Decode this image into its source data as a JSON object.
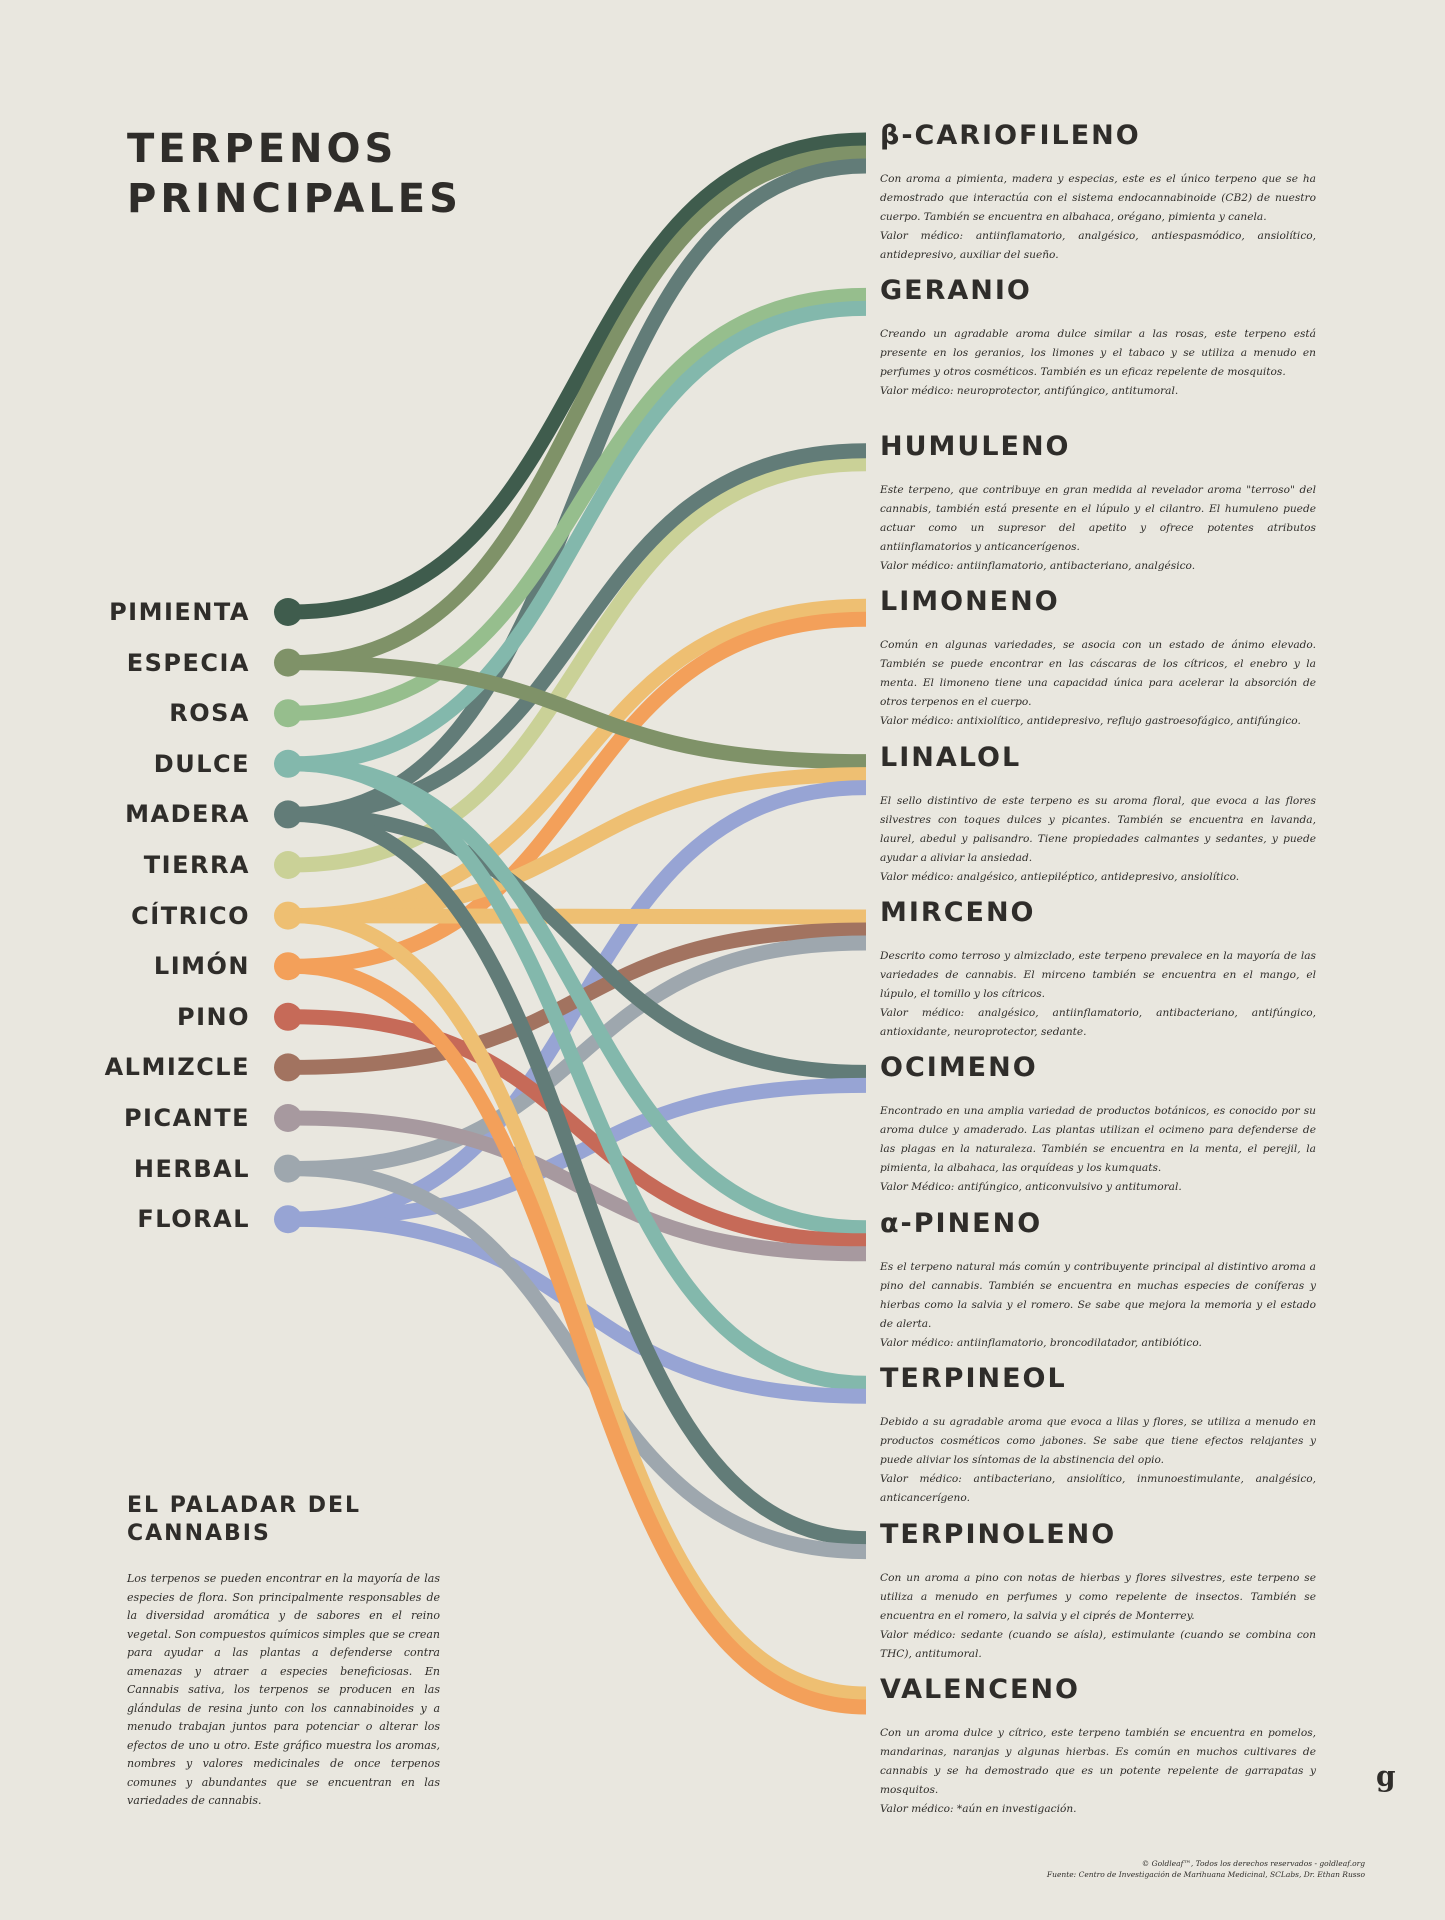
{
  "title": {
    "line1": "TERPENOS",
    "line2": "PRINCIPALES"
  },
  "aromas": [
    {
      "id": "pimienta",
      "label": "PIMIENTA",
      "color": "#3f5c4d"
    },
    {
      "id": "especia",
      "label": "ESPECIA",
      "color": "#7f9268"
    },
    {
      "id": "rosa",
      "label": "ROSA",
      "color": "#96be8d"
    },
    {
      "id": "dulce",
      "label": "DULCE",
      "color": "#83b8ac"
    },
    {
      "id": "madera",
      "label": "MADERA",
      "color": "#627c78"
    },
    {
      "id": "tierra",
      "label": "TIERRA",
      "color": "#cad197"
    },
    {
      "id": "citrico",
      "label": "CÍTRICO",
      "color": "#eebf72"
    },
    {
      "id": "limon",
      "label": "LIMÓN",
      "color": "#f3a05a"
    },
    {
      "id": "pino",
      "label": "PINO",
      "color": "#c66a58"
    },
    {
      "id": "almizcle",
      "label": "ALMIZCLE",
      "color": "#a27360"
    },
    {
      "id": "picante",
      "label": "PICANTE",
      "color": "#a7999f"
    },
    {
      "id": "herbal",
      "label": "HERBAL",
      "color": "#9ea7ae"
    },
    {
      "id": "floral",
      "label": "FLORAL",
      "color": "#97a4d4"
    }
  ],
  "terpenes": [
    {
      "id": "cariofileno",
      "name": "β-CARIOFILENO",
      "description": [
        "Con aroma a pimienta, madera y especias, este es el único terpeno que se ha demostrado que interactúa con el sistema endocannabinoide (CB2) de nuestro cuerpo. También se encuentra en albahaca, orégano, pimienta y canela.",
        "Valor médico: antiinflamatorio, analgésico, antiespasmódico, ansiolítico, antidepresivo, auxiliar del sueño."
      ]
    },
    {
      "id": "geranio",
      "name": "GERANIO",
      "description": [
        "Creando un agradable aroma dulce similar a las rosas, este terpeno está presente en los geranios, los limones y el tabaco y se utiliza a menudo en perfumes y otros cosméticos. También es un eficaz repelente de mosquitos.",
        "Valor médico: neuroprotector, antifúngico, antitumoral."
      ]
    },
    {
      "id": "humuleno",
      "name": "HUMULENO",
      "description": [
        "Este terpeno, que contribuye en gran medida al revelador aroma \"terroso\" del cannabis, también está presente en el lúpulo y el cilantro. El humuleno puede actuar como un supresor del apetito y ofrece potentes atributos antiinflamatorios y anticancerígenos.",
        "Valor médico: antiinflamatorio, antibacteriano, analgésico."
      ]
    },
    {
      "id": "limoneno",
      "name": "LIMONENO",
      "description": [
        "Común en algunas variedades, se asocia con un estado de ánimo elevado. También se puede encontrar en las cáscaras de los cítricos, el enebro y la menta. El limoneno tiene una capacidad única para acelerar la absorción de otros terpenos en el cuerpo.",
        "Valor médico: antixiolítico, antidepresivo, reflujo gastroesofágico, antifúngico."
      ]
    },
    {
      "id": "linalol",
      "name": "LINALOL",
      "description": [
        "El sello distintivo de este terpeno es su aroma floral, que evoca a las flores silvestres con toques dulces y picantes. También se encuentra en lavanda, laurel, abedul y palisandro. Tiene propiedades calmantes y sedantes, y puede ayudar a aliviar la ansiedad.",
        "Valor médico: analgésico, antiepiléptico, antidepresivo, ansiolítico."
      ]
    },
    {
      "id": "mirceno",
      "name": "MIRCENO",
      "description": [
        "Descrito como terroso y almizclado, este terpeno prevalece en la mayoría de las variedades de cannabis. El mirceno también se encuentra en el mango, el lúpulo, el tomillo y los cítricos.",
        "Valor médico: analgésico, antiinflamatorio, antibacteriano, antifúngico, antioxidante, neuroprotector, sedante."
      ]
    },
    {
      "id": "ocimeno",
      "name": "OCIMENO",
      "description": [
        "Encontrado en una amplia variedad de productos botánicos, es conocido por su aroma dulce y amaderado. Las plantas utilizan el ocimeno para defenderse de las plagas en la naturaleza. También se encuentra en la menta, el perejil, la pimienta, la albahaca, las orquídeas y los kumquats.",
        "Valor Médico: antifúngico, anticonvulsivo y antitumoral."
      ]
    },
    {
      "id": "pineno",
      "name": "α-PINENO",
      "description": [
        "Es el terpeno natural más común y contribuyente principal al distintivo aroma a pino del cannabis. También se encuentra en muchas especies de coníferas y hierbas como la salvia y el romero. Se sabe que mejora la memoria y el estado de alerta.",
        "Valor médico: antiinflamatorio, broncodilatador, antibiótico."
      ]
    },
    {
      "id": "terpineol",
      "name": "TERPINEOL",
      "description": [
        "Debido a su agradable aroma que evoca a lilas y flores, se utiliza a menudo en productos cosméticos como jabones. Se sabe que tiene efectos relajantes y puede aliviar los síntomas de la abstinencia del opio.",
        "Valor médico: antibacteriano, ansiolítico, inmunoestimulante, analgésico, anticancerígeno."
      ]
    },
    {
      "id": "terpinoleno",
      "name": "TERPINOLENO",
      "description": [
        "Con un aroma a pino con notas de hierbas y flores silvestres, este terpeno se utiliza a menudo en perfumes y como repelente de insectos. También se encuentra en el romero, la salvia y el ciprés de Monterrey.",
        "Valor médico: sedante (cuando se aísla), estimulante (cuando se combina con THC), antitumoral."
      ]
    },
    {
      "id": "valenceno",
      "name": "VALENCENO",
      "description": [
        "Con un aroma dulce y cítrico, este terpeno también se encuentra en pomelos, mandarinas, naranjas y algunas hierbas. Es común en muchos cultivares de cannabis y se ha demostrado que es un potente repelente de garrapatas y mosquitos.",
        "Valor médico: *aún en investigación."
      ]
    }
  ],
  "links": [
    {
      "from": "pimienta",
      "to": "cariofileno"
    },
    {
      "from": "especia",
      "to": "cariofileno"
    },
    {
      "from": "madera",
      "to": "cariofileno"
    },
    {
      "from": "rosa",
      "to": "geranio"
    },
    {
      "from": "dulce",
      "to": "geranio"
    },
    {
      "from": "tierra",
      "to": "humuleno"
    },
    {
      "from": "madera",
      "to": "humuleno"
    },
    {
      "from": "citrico",
      "to": "limoneno"
    },
    {
      "from": "limon",
      "to": "limoneno"
    },
    {
      "from": "especia",
      "to": "linalol"
    },
    {
      "from": "citrico",
      "to": "linalol"
    },
    {
      "from": "floral",
      "to": "linalol"
    },
    {
      "from": "citrico",
      "to": "mirceno"
    },
    {
      "from": "almizcle",
      "to": "mirceno"
    },
    {
      "from": "herbal",
      "to": "mirceno"
    },
    {
      "from": "madera",
      "to": "ocimeno"
    },
    {
      "from": "floral",
      "to": "ocimeno"
    },
    {
      "from": "dulce",
      "to": "pineno"
    },
    {
      "from": "pino",
      "to": "pineno"
    },
    {
      "from": "picante",
      "to": "pineno"
    },
    {
      "from": "dulce",
      "to": "terpineol"
    },
    {
      "from": "floral",
      "to": "terpineol"
    },
    {
      "from": "madera",
      "to": "terpinoleno"
    },
    {
      "from": "herbal",
      "to": "terpinoleno"
    },
    {
      "from": "citrico",
      "to": "valenceno"
    },
    {
      "from": "limon",
      "to": "valenceno"
    }
  ],
  "intro": {
    "title_line1": "EL PALADAR DEL",
    "title_line2": "CANNABIS",
    "text": "Los terpenos se pueden encontrar en la mayoría de las especies de flora. Son principalmente responsables de la diversidad aromática y de sabores en el reino vegetal. Son compuestos químicos simples que se crean para ayudar a las plantas a defenderse contra amenazas y atraer a especies beneficiosas. En Cannabis sativa, los terpenos se producen en las glándulas de resina junto con los cannabinoides y a menudo trabajan juntos para potenciar o alterar los efectos de uno u otro. Este gráfico muestra los aromas, nombres y valores medicinales de once terpenos comunes y abundantes que se encuentran en las variedades de cannabis."
  },
  "footer": {
    "line1": "© Goldleaf™, Todos los derechos reservados - goldleaf.org",
    "line2": "Fuente: Centro de Investigación de Marihuana Medicinal, SCLabs, Dr. Ethan Russo",
    "brand": "g"
  }
}
